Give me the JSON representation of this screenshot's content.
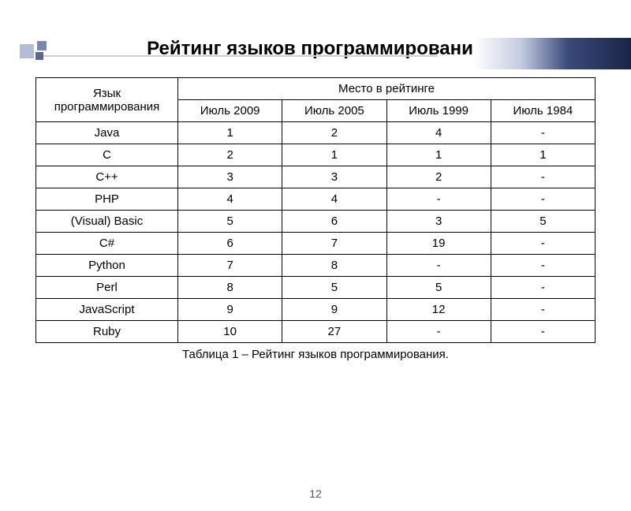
{
  "title": "Рейтинг языков программирования",
  "table": {
    "header": {
      "langLabel": "Язык программирования",
      "ratingLabel": "Место в рейтинге",
      "periods": [
        "Июль 2009",
        "Июль 2005",
        "Июль 1999",
        "Июль 1984"
      ]
    },
    "rows": [
      {
        "lang": "Java",
        "vals": [
          "1",
          "2",
          "4",
          "-"
        ]
      },
      {
        "lang": "C",
        "vals": [
          "2",
          "1",
          "1",
          "1"
        ]
      },
      {
        "lang": "C++",
        "vals": [
          "3",
          "3",
          "2",
          "-"
        ]
      },
      {
        "lang": "PHP",
        "vals": [
          "4",
          "4",
          "-",
          "-"
        ]
      },
      {
        "lang": "(Visual) Basic",
        "vals": [
          "5",
          "6",
          "3",
          "5"
        ]
      },
      {
        "lang": "C#",
        "vals": [
          "6",
          "7",
          "19",
          "-"
        ]
      },
      {
        "lang": "Python",
        "vals": [
          "7",
          "8",
          "-",
          "-"
        ]
      },
      {
        "lang": "Perl",
        "vals": [
          "8",
          "5",
          "5",
          "-"
        ]
      },
      {
        "lang": "JavaScript",
        "vals": [
          "9",
          "9",
          "12",
          "-"
        ]
      },
      {
        "lang": "Ruby",
        "vals": [
          "10",
          "27",
          "-",
          "-"
        ]
      }
    ]
  },
  "caption": "Таблица 1 – Рейтинг языков программирования.",
  "pageNumber": "12",
  "styling": {
    "titleFontSize": 24,
    "cellFontSize": 15,
    "borderColor": "#000000",
    "background": "#ffffff",
    "decoGradient": [
      "#ffffff",
      "#c5cde3",
      "#3a4a7a",
      "#1a2548"
    ],
    "decoSquareColors": [
      "#b4bdd8",
      "#7a87b5",
      "#5a6694"
    ]
  }
}
